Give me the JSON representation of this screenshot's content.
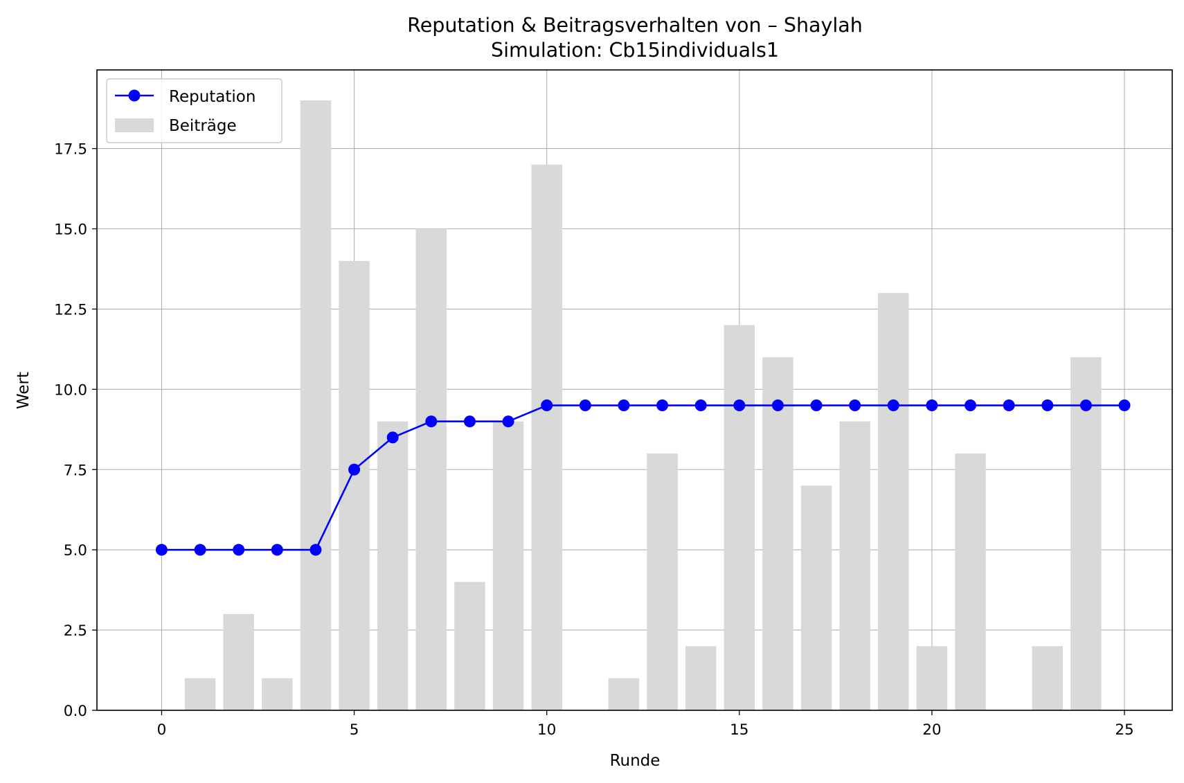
{
  "chart_data": {
    "type": "bar",
    "title": "Reputation & Beitragsverhalten von – Shaylah",
    "subtitle": "Simulation: Cb15individuals1",
    "xlabel": "Runde",
    "ylabel": "Wert",
    "xlim": [
      -1.68,
      26.24
    ],
    "ylim": [
      0,
      19.95
    ],
    "xticks": [
      0,
      5,
      10,
      15,
      20,
      25
    ],
    "xtick_labels": [
      "0",
      "5",
      "10",
      "15",
      "20",
      "25"
    ],
    "yticks": [
      0,
      2.5,
      5,
      7.5,
      10,
      12.5,
      15,
      17.5
    ],
    "ytick_labels": [
      "0.0",
      "2.5",
      "5.0",
      "7.5",
      "10.0",
      "12.5",
      "15.0",
      "17.5"
    ],
    "grid": true,
    "legend": "top-left",
    "series": [
      {
        "name": "Reputation",
        "kind": "line",
        "marker": "circle",
        "color": "#0000ff",
        "x": [
          0,
          1,
          2,
          3,
          4,
          5,
          6,
          7,
          8,
          9,
          10,
          11,
          12,
          13,
          14,
          15,
          16,
          17,
          18,
          19,
          20,
          21,
          22,
          23,
          24,
          25
        ],
        "values": [
          5,
          5,
          5,
          5,
          5,
          7.5,
          8.5,
          9,
          9,
          9,
          9.5,
          9.5,
          9.5,
          9.5,
          9.5,
          9.5,
          9.5,
          9.5,
          9.5,
          9.5,
          9.5,
          9.5,
          9.5,
          9.5,
          9.5,
          9.5
        ]
      },
      {
        "name": "Beiträge",
        "kind": "bar",
        "color": "#d9d9d9",
        "x": [
          0,
          1,
          2,
          3,
          4,
          5,
          6,
          7,
          8,
          9,
          10,
          11,
          12,
          13,
          14,
          15,
          16,
          17,
          18,
          19,
          20,
          21,
          22,
          23,
          24,
          25
        ],
        "values": [
          0,
          1,
          3,
          1,
          19,
          14,
          9,
          15,
          4,
          9,
          17,
          0,
          1,
          8,
          2,
          12,
          11,
          7,
          9,
          13,
          2,
          8,
          0,
          2,
          11,
          0
        ]
      }
    ]
  }
}
